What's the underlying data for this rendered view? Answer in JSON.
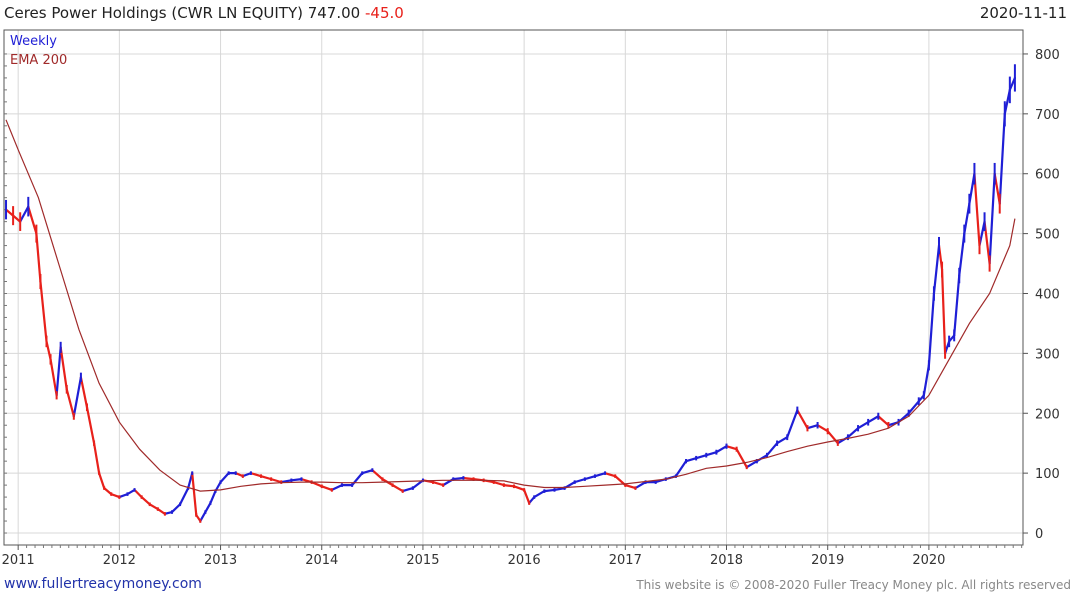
{
  "header": {
    "title": "Ceres Power Holdings (CWR LN EQUITY) 747.00",
    "change": "-45.0",
    "date": "2020-11-11"
  },
  "footer": {
    "left": "www.fullertreacymoney.com",
    "right": "This website is © 2008-2020 Fuller Treacy Money plc. All rights reserved"
  },
  "colors": {
    "up": "#1f1fd6",
    "down": "#e8211b",
    "ema": "#a02a2a",
    "grid": "#d8d8d8",
    "price_series": "#1f1fd6"
  },
  "chart_data": {
    "type": "line",
    "title": "",
    "xlabel": "",
    "ylabel": "",
    "ylim": [
      -20,
      840
    ],
    "xlim": [
      2010.86,
      2020.93
    ],
    "grid": true,
    "legend": "top-left",
    "yticks": [
      0,
      100,
      200,
      300,
      400,
      500,
      600,
      700,
      800
    ],
    "xticks": [
      "2011",
      "2012",
      "2013",
      "2014",
      "2015",
      "2016",
      "2017",
      "2018",
      "2019",
      "2020"
    ],
    "series": [
      {
        "name": "Weekly",
        "x": [
          2010.88,
          2010.95,
          2011.02,
          2011.1,
          2011.18,
          2011.22,
          2011.28,
          2011.32,
          2011.38,
          2011.42,
          2011.48,
          2011.55,
          2011.62,
          2011.68,
          2011.75,
          2011.8,
          2011.85,
          2011.92,
          2012.0,
          2012.08,
          2012.15,
          2012.22,
          2012.3,
          2012.38,
          2012.45,
          2012.52,
          2012.6,
          2012.68,
          2012.72,
          2012.76,
          2012.8,
          2012.85,
          2012.9,
          2012.95,
          2013.0,
          2013.08,
          2013.15,
          2013.22,
          2013.3,
          2013.4,
          2013.5,
          2013.6,
          2013.7,
          2013.8,
          2013.9,
          2014.0,
          2014.1,
          2014.2,
          2014.3,
          2014.4,
          2014.5,
          2014.6,
          2014.7,
          2014.8,
          2014.9,
          2015.0,
          2015.1,
          2015.2,
          2015.3,
          2015.4,
          2015.5,
          2015.6,
          2015.7,
          2015.8,
          2015.9,
          2016.0,
          2016.05,
          2016.1,
          2016.2,
          2016.3,
          2016.4,
          2016.5,
          2016.6,
          2016.7,
          2016.8,
          2016.9,
          2017.0,
          2017.1,
          2017.2,
          2017.3,
          2017.4,
          2017.5,
          2017.6,
          2017.7,
          2017.8,
          2017.9,
          2018.0,
          2018.1,
          2018.2,
          2018.3,
          2018.4,
          2018.5,
          2018.6,
          2018.7,
          2018.8,
          2018.9,
          2019.0,
          2019.1,
          2019.2,
          2019.3,
          2019.4,
          2019.5,
          2019.6,
          2019.7,
          2019.8,
          2019.9,
          2019.95,
          2020.0,
          2020.05,
          2020.1,
          2020.13,
          2020.16,
          2020.2,
          2020.25,
          2020.3,
          2020.35,
          2020.4,
          2020.45,
          2020.5,
          2020.55,
          2020.6,
          2020.65,
          2020.7,
          2020.75,
          2020.8,
          2020.85
        ],
        "values": [
          540,
          530,
          520,
          545,
          500,
          420,
          320,
          290,
          230,
          310,
          240,
          195,
          260,
          210,
          150,
          100,
          75,
          65,
          60,
          65,
          72,
          60,
          48,
          40,
          32,
          35,
          48,
          75,
          100,
          30,
          20,
          35,
          50,
          70,
          85,
          100,
          100,
          95,
          100,
          95,
          90,
          85,
          88,
          90,
          85,
          78,
          72,
          80,
          80,
          100,
          105,
          90,
          80,
          70,
          75,
          88,
          85,
          80,
          90,
          92,
          90,
          88,
          85,
          80,
          78,
          72,
          50,
          60,
          70,
          72,
          75,
          85,
          90,
          95,
          100,
          95,
          80,
          75,
          85,
          85,
          90,
          95,
          120,
          125,
          130,
          135,
          145,
          140,
          110,
          120,
          130,
          150,
          160,
          205,
          175,
          180,
          170,
          150,
          160,
          175,
          185,
          195,
          180,
          185,
          200,
          220,
          230,
          280,
          400,
          480,
          440,
          300,
          320,
          330,
          430,
          500,
          550,
          600,
          480,
          520,
          450,
          600,
          550,
          700,
          740,
          760
        ]
      },
      {
        "name": "EMA 200",
        "x": [
          2010.88,
          2011.0,
          2011.2,
          2011.4,
          2011.6,
          2011.8,
          2012.0,
          2012.2,
          2012.4,
          2012.6,
          2012.8,
          2013.0,
          2013.2,
          2013.4,
          2013.6,
          2013.8,
          2014.0,
          2014.2,
          2014.4,
          2014.6,
          2014.8,
          2015.0,
          2015.2,
          2015.4,
          2015.6,
          2015.8,
          2016.0,
          2016.2,
          2016.4,
          2016.6,
          2016.8,
          2017.0,
          2017.2,
          2017.4,
          2017.6,
          2017.8,
          2018.0,
          2018.2,
          2018.4,
          2018.6,
          2018.8,
          2019.0,
          2019.2,
          2019.4,
          2019.6,
          2019.8,
          2020.0,
          2020.2,
          2020.4,
          2020.6,
          2020.8,
          2020.85
        ],
        "values": [
          690,
          640,
          560,
          450,
          340,
          250,
          185,
          140,
          105,
          80,
          70,
          72,
          78,
          82,
          84,
          85,
          85,
          84,
          84,
          85,
          86,
          87,
          88,
          88,
          88,
          87,
          80,
          76,
          76,
          78,
          80,
          82,
          86,
          90,
          98,
          108,
          112,
          118,
          126,
          136,
          145,
          152,
          158,
          165,
          175,
          195,
          230,
          290,
          350,
          400,
          480,
          525
        ]
      }
    ]
  }
}
